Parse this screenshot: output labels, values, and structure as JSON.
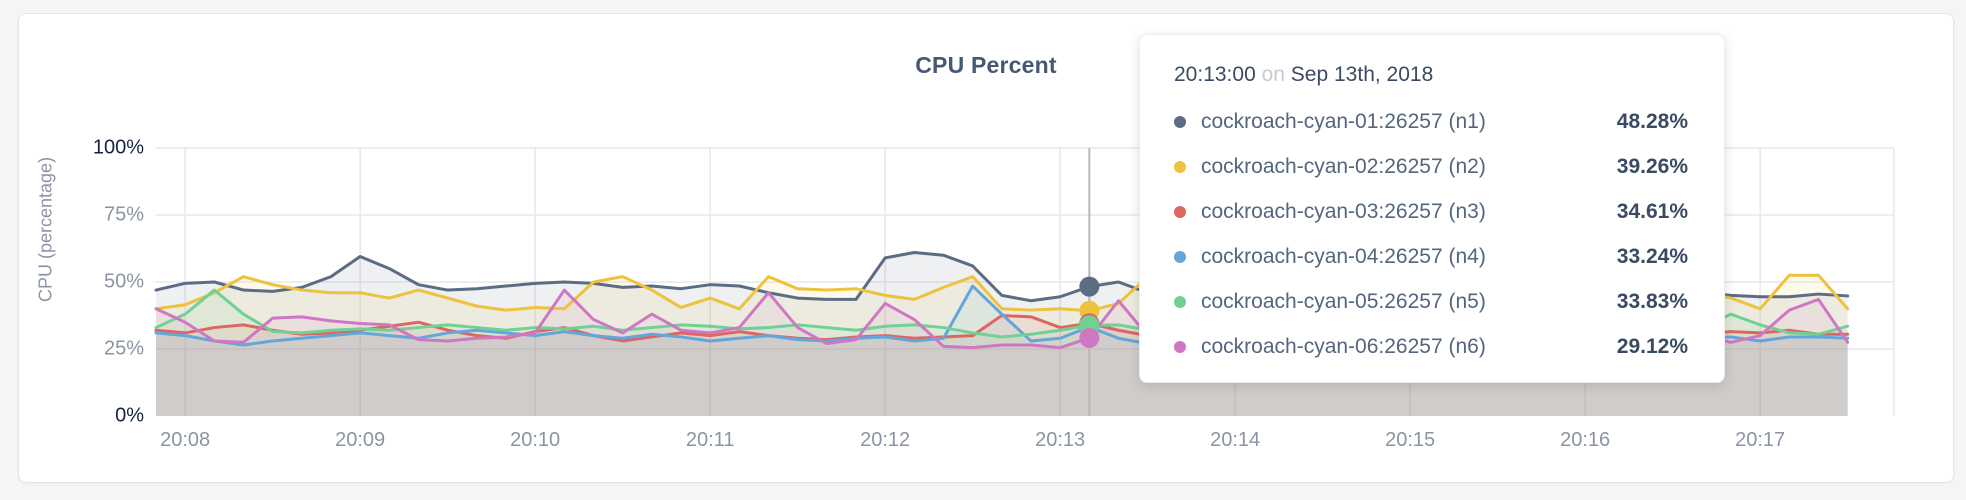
{
  "chart_data": {
    "type": "area",
    "title": "CPU Percent",
    "ylabel": "CPU (percentage)",
    "xlabel": "",
    "grid": true,
    "ylim": [
      0,
      100
    ],
    "y_ticks": [
      {
        "value": 0,
        "label": "0%",
        "emphasis": true
      },
      {
        "value": 25,
        "label": "25%",
        "emphasis": false
      },
      {
        "value": 50,
        "label": "50%",
        "emphasis": false
      },
      {
        "value": 75,
        "label": "75%",
        "emphasis": false
      },
      {
        "value": 100,
        "label": "100%",
        "emphasis": true
      }
    ],
    "x_start_time": "20:07:50",
    "x_end_time": "20:17:30",
    "x_interval_seconds": 10,
    "x_ticks": [
      {
        "seconds": 10,
        "label": "20:08"
      },
      {
        "seconds": 70,
        "label": "20:09"
      },
      {
        "seconds": 130,
        "label": "20:10"
      },
      {
        "seconds": 190,
        "label": "20:11"
      },
      {
        "seconds": 250,
        "label": "20:12"
      },
      {
        "seconds": 310,
        "label": "20:13"
      },
      {
        "seconds": 370,
        "label": "20:14"
      },
      {
        "seconds": 430,
        "label": "20:15"
      },
      {
        "seconds": 490,
        "label": "20:16"
      },
      {
        "seconds": 550,
        "label": "20:17"
      }
    ],
    "hover_index": 32,
    "legend_position": "tooltip",
    "series": [
      {
        "name": "cockroach-cyan-01:26257 (n1)",
        "color": "#5b6c84",
        "values": [
          47,
          49.5,
          50,
          47,
          46.5,
          48,
          52,
          59.5,
          55,
          49,
          47,
          47.5,
          48.5,
          49.5,
          50,
          49.5,
          48,
          48.5,
          47.5,
          49,
          48.5,
          46,
          44,
          43.5,
          43.5,
          59,
          61,
          60,
          56,
          45,
          43,
          44.5,
          48.28,
          50,
          46,
          44,
          46,
          47.5,
          46,
          45.5,
          47,
          48,
          46.5,
          45,
          46,
          47,
          45.5,
          46.5,
          47.5,
          46,
          45,
          46.5,
          47,
          46,
          45,
          44.5,
          44.5,
          45.5,
          44.8
        ]
      },
      {
        "name": "cockroach-cyan-02:26257 (n2)",
        "color": "#eec23c",
        "values": [
          40,
          41.5,
          46,
          52,
          49,
          47,
          46,
          46,
          44,
          47,
          44,
          41,
          39.5,
          40.5,
          40,
          50,
          52,
          47,
          40.5,
          44,
          40,
          52,
          47.5,
          47,
          47.5,
          45,
          43.5,
          48,
          52,
          40,
          39.5,
          40,
          39.26,
          42,
          52,
          48,
          46,
          47,
          48,
          46,
          45,
          46,
          47,
          45,
          46,
          48,
          47,
          46,
          45,
          46,
          47,
          46,
          45,
          46,
          44,
          40,
          52.5,
          52.5,
          40
        ]
      },
      {
        "name": "cockroach-cyan-03:26257 (n3)",
        "color": "#dd6660",
        "values": [
          32,
          31,
          33,
          34,
          32,
          30.5,
          31,
          32,
          33.5,
          35,
          32,
          30,
          29,
          31.5,
          33,
          30,
          28,
          29.5,
          31,
          30,
          31.5,
          30,
          29,
          28.5,
          29.5,
          30,
          29,
          29.5,
          30,
          37.5,
          37,
          33,
          34.61,
          32,
          30,
          29,
          30,
          31,
          30.5,
          31,
          30,
          31.5,
          31,
          30,
          31,
          32,
          31,
          30.5,
          31,
          30,
          31,
          31.5,
          31,
          30.5,
          31.5,
          31,
          32,
          30.5,
          30.5
        ]
      },
      {
        "name": "cockroach-cyan-04:26257 (n4)",
        "color": "#63a6d9",
        "values": [
          31,
          30,
          28,
          26.5,
          28,
          29,
          30,
          31,
          30,
          29,
          31,
          32,
          31,
          30,
          31.5,
          30,
          29,
          30.5,
          29.5,
          28,
          29,
          30,
          28.5,
          28,
          29,
          29.5,
          28,
          29,
          48.5,
          38,
          28,
          29,
          33.24,
          29,
          27,
          28,
          29,
          30,
          29.5,
          29,
          30,
          29.5,
          29,
          30,
          29.5,
          29,
          30,
          29.5,
          29,
          30,
          29.5,
          29,
          30,
          29.5,
          29.5,
          28,
          29.5,
          29.5,
          29
        ]
      },
      {
        "name": "cockroach-cyan-05:26257 (n5)",
        "color": "#70d195",
        "values": [
          33,
          38,
          47,
          38,
          31.5,
          31,
          32,
          32.5,
          32,
          33,
          34,
          33,
          32,
          33,
          32.5,
          33.5,
          32,
          33,
          34,
          33.5,
          32.5,
          33,
          34,
          33,
          32,
          33.5,
          34,
          33,
          31,
          29.5,
          30.5,
          32,
          33.83,
          34,
          32,
          33,
          32.5,
          33,
          33.5,
          33,
          32.5,
          33,
          33.5,
          33,
          32.5,
          33,
          33.5,
          33,
          32.5,
          33,
          33.5,
          33,
          32.5,
          33,
          38,
          34,
          31,
          30.5,
          33.5
        ]
      },
      {
        "name": "cockroach-cyan-06:26257 (n6)",
        "color": "#d077c4",
        "values": [
          40,
          35,
          28,
          27.5,
          36.5,
          37,
          35.5,
          34.5,
          34,
          28.5,
          28,
          29,
          29.5,
          31,
          47,
          36,
          31,
          38,
          32,
          31,
          33,
          46,
          33,
          27,
          28.5,
          42,
          36,
          26,
          25.5,
          26.5,
          26.5,
          25.5,
          29.12,
          43,
          30,
          24,
          27,
          29,
          30,
          28,
          29,
          30,
          29,
          28,
          29,
          30,
          29,
          28,
          29,
          30,
          29,
          28,
          29,
          30,
          27.5,
          30,
          39.5,
          43.5,
          27.5
        ]
      }
    ]
  },
  "tooltip": {
    "time": "20:13:00",
    "conjunction": "on",
    "date": "Sep 13th, 2018",
    "rows": [
      {
        "label": "cockroach-cyan-01:26257 (n1)",
        "value": "48.28%"
      },
      {
        "label": "cockroach-cyan-02:26257 (n2)",
        "value": "39.26%"
      },
      {
        "label": "cockroach-cyan-03:26257 (n3)",
        "value": "34.61%"
      },
      {
        "label": "cockroach-cyan-04:26257 (n4)",
        "value": "33.24%"
      },
      {
        "label": "cockroach-cyan-05:26257 (n5)",
        "value": "33.83%"
      },
      {
        "label": "cockroach-cyan-06:26257 (n6)",
        "value": "29.12%"
      }
    ]
  },
  "colors": {
    "page_background": "#f4f5f6",
    "card_background": "#ffffff",
    "grid_line": "#e9e9ea",
    "hover_line": "#b5b7b9",
    "axis_label_gray": "#8b94a3",
    "axis_label_dark": "#16243f",
    "title_text": "#475872"
  }
}
